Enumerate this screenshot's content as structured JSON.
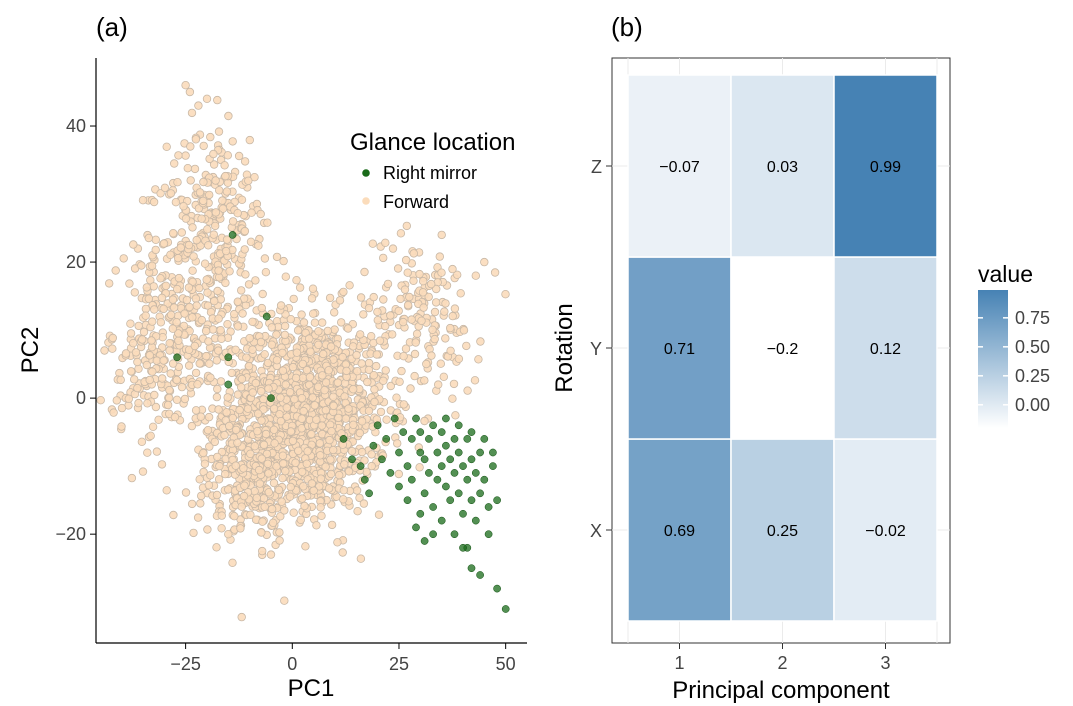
{
  "panels": {
    "a_label": "(a)",
    "b_label": "(b)"
  },
  "chart_data": [
    {
      "type": "scatter",
      "xlabel": "PC1",
      "ylabel": "PC2",
      "xlim": [
        -46,
        55
      ],
      "ylim": [
        -36,
        50
      ],
      "x_ticks": [
        -25,
        0,
        25,
        50
      ],
      "x_tick_labels": [
        "−25",
        "0",
        "25",
        "50"
      ],
      "y_ticks": [
        -20,
        0,
        20,
        40
      ],
      "y_tick_labels": [
        "−20",
        "0",
        "20",
        "40"
      ],
      "grid": false,
      "legend": {
        "title": "Glance location",
        "placement": "top-right",
        "entries": [
          {
            "label": "Right mirror",
            "color": "#1a6b1a"
          },
          {
            "label": "Forward",
            "color": "#fbdcbb"
          }
        ]
      },
      "series": [
        {
          "name": "Forward",
          "color": "#fbdcbb",
          "edge_color": "#c8b8a6",
          "clusters": [
            {
              "center": [
                3,
                -2
              ],
              "spread": [
                12,
                9
              ],
              "n": 1400
            },
            {
              "center": [
                -22,
                18
              ],
              "spread": [
                10,
                10
              ],
              "n": 300
            },
            {
              "center": [
                -18,
                30
              ],
              "spread": [
                6,
                6
              ],
              "n": 120
            },
            {
              "center": [
                -30,
                5
              ],
              "spread": [
                8,
                8
              ],
              "n": 200
            },
            {
              "center": [
                30,
                12
              ],
              "spread": [
                9,
                7
              ],
              "n": 160
            },
            {
              "center": [
                -10,
                -12
              ],
              "spread": [
                8,
                6
              ],
              "n": 220
            }
          ],
          "points": [
            [
              -25,
              46
            ],
            [
              -24,
              45
            ],
            [
              -22,
              43
            ],
            [
              -20,
              44
            ],
            [
              -44,
              7
            ],
            [
              45,
              20
            ],
            [
              43,
              18
            ],
            [
              35,
              24
            ],
            [
              -15,
              -20
            ],
            [
              -5,
              -23
            ]
          ]
        },
        {
          "name": "Right mirror",
          "color": "#1a6b1a",
          "points": [
            [
              20,
              -4
            ],
            [
              22,
              -6
            ],
            [
              24,
              -3
            ],
            [
              25,
              -8
            ],
            [
              26,
              -5
            ],
            [
              27,
              -10
            ],
            [
              28,
              -6
            ],
            [
              28,
              -12
            ],
            [
              29,
              -3
            ],
            [
              30,
              -8
            ],
            [
              30,
              -5
            ],
            [
              31,
              -9
            ],
            [
              31,
              -14
            ],
            [
              32,
              -6
            ],
            [
              32,
              -11
            ],
            [
              33,
              -4
            ],
            [
              33,
              -16
            ],
            [
              34,
              -8
            ],
            [
              34,
              -12
            ],
            [
              35,
              -5
            ],
            [
              35,
              -10
            ],
            [
              35,
              -18
            ],
            [
              36,
              -7
            ],
            [
              36,
              -13
            ],
            [
              37,
              -9
            ],
            [
              37,
              -15
            ],
            [
              38,
              -6
            ],
            [
              38,
              -11
            ],
            [
              38,
              -20
            ],
            [
              39,
              -8
            ],
            [
              39,
              -14
            ],
            [
              40,
              -10
            ],
            [
              40,
              -17
            ],
            [
              41,
              -6
            ],
            [
              41,
              -12
            ],
            [
              41,
              -22
            ],
            [
              42,
              -9
            ],
            [
              42,
              -15
            ],
            [
              43,
              -11
            ],
            [
              43,
              -18
            ],
            [
              44,
              -8
            ],
            [
              44,
              -14
            ],
            [
              45,
              -12
            ],
            [
              46,
              -16
            ],
            [
              46,
              -20
            ],
            [
              47,
              -10
            ],
            [
              48,
              -15
            ],
            [
              42,
              -25
            ],
            [
              44,
              -26
            ],
            [
              40,
              -22
            ],
            [
              33,
              -20
            ],
            [
              30,
              -17
            ],
            [
              27,
              -15
            ],
            [
              25,
              -13
            ],
            [
              23,
              -11
            ],
            [
              21,
              -9
            ],
            [
              19,
              -7
            ],
            [
              36,
              -3
            ],
            [
              39,
              -4
            ],
            [
              42,
              -5
            ],
            [
              45,
              -6
            ],
            [
              47,
              -8
            ],
            [
              29,
              -19
            ],
            [
              31,
              -21
            ],
            [
              48,
              -28
            ],
            [
              50,
              -31
            ],
            [
              -14,
              24
            ],
            [
              -6,
              12
            ],
            [
              -15,
              6
            ],
            [
              -27,
              6
            ],
            [
              -15,
              2
            ],
            [
              -5,
              0
            ],
            [
              12,
              -6
            ],
            [
              14,
              -9
            ],
            [
              16,
              -10
            ],
            [
              17,
              -12
            ],
            [
              18,
              -14
            ]
          ]
        }
      ]
    },
    {
      "type": "heatmap",
      "xlabel": "Principal component",
      "ylabel": "Rotation",
      "x_categories": [
        "1",
        "2",
        "3"
      ],
      "y_categories": [
        "X",
        "Y",
        "Z"
      ],
      "values": [
        [
          0.69,
          0.25,
          -0.02
        ],
        [
          0.71,
          -0.2,
          0.12
        ],
        [
          -0.07,
          0.03,
          0.99
        ]
      ],
      "cell_labels": [
        [
          "0.69",
          "0.25",
          "−0.02"
        ],
        [
          "0.71",
          "−0.2",
          "0.12"
        ],
        [
          "−0.07",
          "0.03",
          "0.99"
        ]
      ],
      "grid": true,
      "colorscale": {
        "low": "#ffffff",
        "high": "#4682b4",
        "min": -0.2,
        "max": 0.99
      },
      "legend": {
        "title": "value",
        "placement": "right",
        "ticks": [
          0.75,
          0.5,
          0.25,
          0.0
        ],
        "tick_labels": [
          "0.75",
          "0.50",
          "0.25",
          "0.00"
        ]
      }
    }
  ]
}
